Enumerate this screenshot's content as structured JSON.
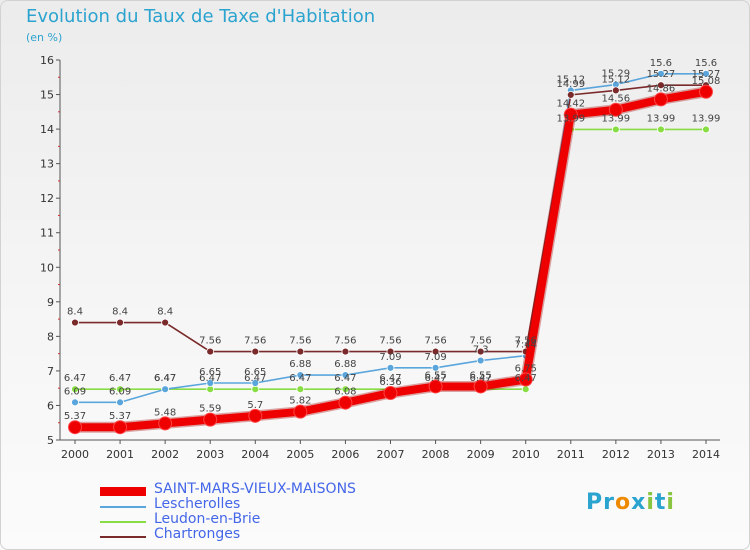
{
  "title": "Evolution du Taux de Taxe d'Habitation",
  "subtitle": "(en %)",
  "logo": "Proxiti",
  "chart_data": {
    "type": "line",
    "title": "Evolution du Taux de Taxe d'Habitation",
    "ylabel": "(en %)",
    "xlabel": "",
    "x": [
      "2000",
      "2001",
      "2002",
      "2003",
      "2004",
      "2005",
      "2006",
      "2007",
      "2008",
      "2009",
      "2010",
      "2011",
      "2012",
      "2013",
      "2014"
    ],
    "ylim": [
      5,
      16
    ],
    "yticks": [
      5,
      6,
      7,
      8,
      9,
      10,
      11,
      12,
      13,
      14,
      15,
      16
    ],
    "grid": false,
    "legend_position": "bottom",
    "series": [
      {
        "name": "SAINT-MARS-VIEUX-MAISONS",
        "color": "#ee0000",
        "values": [
          5.37,
          5.37,
          5.48,
          5.59,
          5.7,
          5.82,
          6.08,
          6.36,
          6.55,
          6.55,
          6.75,
          14.42,
          14.56,
          14.86,
          15.08
        ]
      },
      {
        "name": "Lescherolles",
        "color": "#5aa6dc",
        "values": [
          6.09,
          6.09,
          6.47,
          6.65,
          6.65,
          6.88,
          6.88,
          7.09,
          7.09,
          7.3,
          7.44,
          15.12,
          15.29,
          15.6,
          15.6
        ]
      },
      {
        "name": "Leudon-en-Brie",
        "color": "#88dd44",
        "values": [
          6.47,
          6.47,
          6.47,
          6.47,
          6.47,
          6.47,
          6.47,
          6.47,
          6.47,
          6.47,
          6.47,
          13.99,
          13.99,
          13.99,
          13.99
        ]
      },
      {
        "name": "Chartronges",
        "color": "#7a2a2a",
        "values": [
          8.4,
          8.4,
          8.4,
          7.56,
          7.56,
          7.56,
          7.56,
          7.56,
          7.56,
          7.56,
          7.56,
          14.99,
          15.12,
          15.27,
          15.27
        ]
      }
    ]
  }
}
